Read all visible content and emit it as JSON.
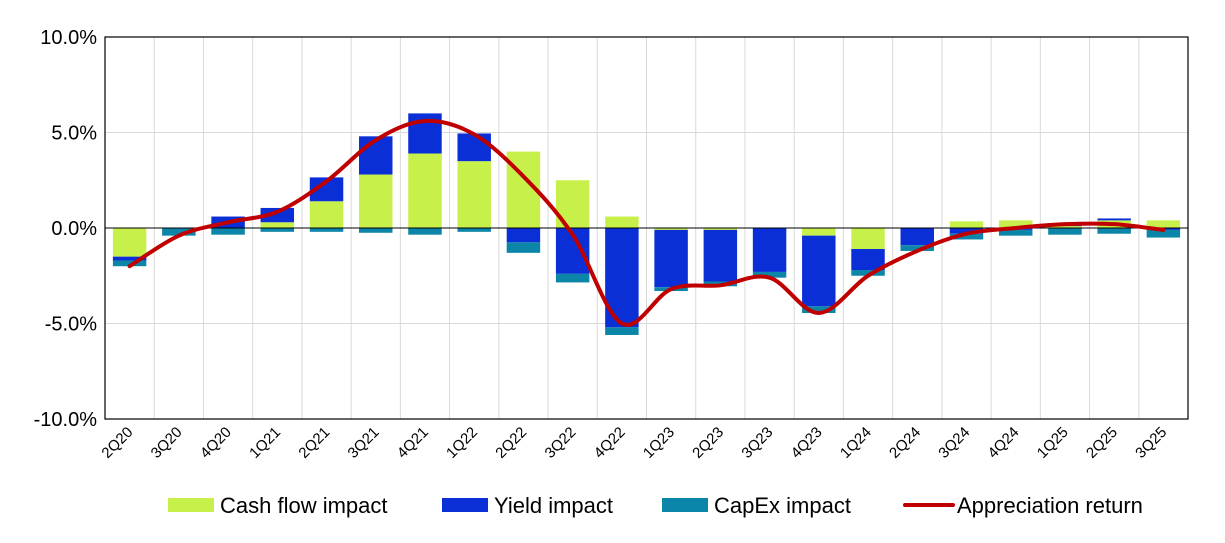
{
  "chart_data": {
    "type": "bar",
    "stacked": true,
    "categories": [
      "2Q20",
      "3Q20",
      "4Q20",
      "1Q21",
      "2Q21",
      "3Q21",
      "4Q21",
      "1Q22",
      "2Q22",
      "3Q22",
      "4Q22",
      "1Q23",
      "2Q23",
      "3Q23",
      "4Q23",
      "1Q24",
      "2Q24",
      "3Q24",
      "4Q24",
      "1Q25",
      "2Q25",
      "3Q25"
    ],
    "series": [
      {
        "name": "Cash flow impact",
        "color": "#c8f04a",
        "values": [
          -1.5,
          0.0,
          0.0,
          0.3,
          1.4,
          2.8,
          3.9,
          3.5,
          4.0,
          2.5,
          0.6,
          -0.1,
          -0.1,
          0.0,
          -0.4,
          -1.1,
          0.0,
          0.35,
          0.4,
          0.1,
          0.4,
          0.4
        ]
      },
      {
        "name": "Yield impact",
        "color": "#0a2fd6",
        "values": [
          -0.2,
          0.0,
          0.6,
          0.75,
          1.25,
          2.0,
          2.1,
          1.45,
          -0.75,
          -2.4,
          -5.2,
          -3.0,
          -2.7,
          -2.3,
          -3.7,
          -1.1,
          -0.9,
          -0.3,
          -0.1,
          0.15,
          0.1,
          -0.1
        ]
      },
      {
        "name": "CapEx impact",
        "color": "#0b85a8",
        "values": [
          -0.3,
          -0.4,
          -0.35,
          -0.2,
          -0.2,
          -0.25,
          -0.35,
          -0.2,
          -0.55,
          -0.45,
          -0.4,
          -0.2,
          -0.25,
          -0.3,
          -0.35,
          -0.3,
          -0.3,
          -0.3,
          -0.3,
          -0.35,
          -0.3,
          -0.4
        ]
      },
      {
        "name": "Appreciation return",
        "type": "line",
        "color": "#c00000",
        "values": [
          -2.0,
          -0.4,
          0.3,
          0.85,
          2.45,
          4.6,
          5.6,
          4.9,
          2.7,
          -0.35,
          -5.0,
          -3.2,
          -3.0,
          -2.6,
          -4.45,
          -2.5,
          -1.2,
          -0.3,
          0.0,
          0.2,
          0.2,
          -0.1
        ]
      }
    ],
    "ylim": [
      -10.0,
      10.0
    ],
    "yticks": [
      "10.0%",
      "5.0%",
      "0.0%",
      "-5.0%",
      "-10.0%"
    ],
    "ytick_values": [
      10,
      5,
      0,
      -5,
      -10
    ],
    "grid": true,
    "legend": "bottom",
    "title": "",
    "xlabel": "",
    "ylabel": ""
  }
}
